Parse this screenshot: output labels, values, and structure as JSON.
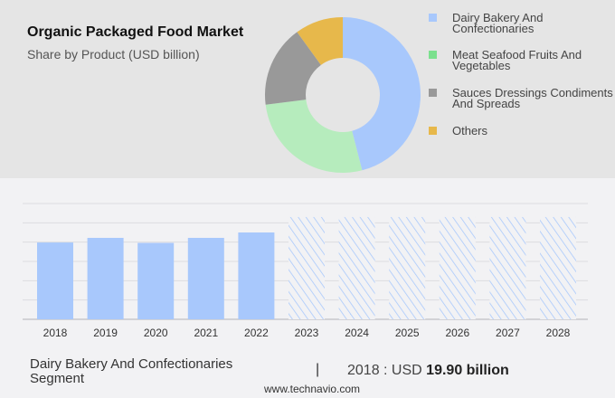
{
  "header": {
    "title": "Organic Packaged Food Market",
    "subtitle": "Share by Product (USD billion)"
  },
  "chart_data": [
    {
      "type": "pie",
      "title": "Organic Packaged Food Market",
      "subtitle": "Share by Product (USD billion)",
      "donut": true,
      "legend_position": "right",
      "slices": [
        {
          "label": "Dairy Bakery And Confectionaries",
          "share": 46,
          "color": "#a8c8fc"
        },
        {
          "label": "Meat Seafood Fruits And Vegetables",
          "share": 27,
          "color": "#b6ecbd"
        },
        {
          "label": "Sauces Dressings Condiments And Spreads",
          "share": 17,
          "color": "#999999"
        },
        {
          "label": "Others",
          "share": 10,
          "color": "#e7b84b"
        }
      ],
      "legend_colors": [
        "#a8c8fc",
        "#7be08e",
        "#999999",
        "#e7b84b"
      ]
    },
    {
      "type": "bar",
      "categories": [
        "2018",
        "2019",
        "2020",
        "2021",
        "2022",
        "2023",
        "2024",
        "2025",
        "2026",
        "2027",
        "2028"
      ],
      "values": [
        19.9,
        21.1,
        19.8,
        21.1,
        22.5,
        null,
        null,
        null,
        null,
        null,
        null
      ],
      "forecast": [
        false,
        false,
        false,
        false,
        false,
        true,
        true,
        true,
        true,
        true,
        true
      ],
      "ylim": [
        0,
        30
      ],
      "grid": true,
      "color": "#a8c8fc",
      "xlabel": "",
      "ylabel": ""
    }
  ],
  "footer": {
    "segment": "Dairy Bakery And Confectionaries",
    "segment_line2": "Segment",
    "separator": "|",
    "year_prefix": "2018 : USD",
    "value": "19.90 billion",
    "website": "www.technavio.com"
  }
}
